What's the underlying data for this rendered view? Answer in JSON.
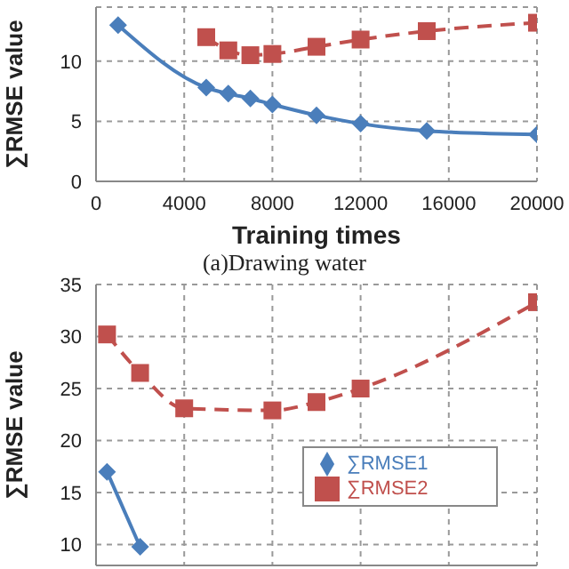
{
  "chart_data": [
    {
      "type": "line",
      "xlabel": "Training times",
      "ylabel": "∑RMSE value",
      "annotations": [
        "(a)Drawing water"
      ],
      "xlim": [
        0,
        20000
      ],
      "xticks": [
        0,
        4000,
        8000,
        12000,
        16000,
        20000
      ],
      "ylim": [
        0,
        14.5
      ],
      "yticks": [
        0,
        5,
        10
      ],
      "grid": true,
      "legend": false,
      "series": [
        {
          "color": "#4a7ebb",
          "marker": "diamond",
          "line_style": "solid",
          "x": [
            1000,
            5000,
            6000,
            7000,
            8000,
            10000,
            12000,
            15000,
            20000
          ],
          "values": [
            13,
            7.8,
            7.3,
            6.9,
            6.4,
            5.5,
            4.8,
            4.2,
            3.9
          ]
        },
        {
          "color": "#c0504d",
          "marker": "square",
          "line_style": "dashed",
          "x": [
            5000,
            6000,
            7000,
            8000,
            10000,
            12000,
            15000,
            20000
          ],
          "values": [
            12,
            10.9,
            10.5,
            10.6,
            11.2,
            11.8,
            12.5,
            13.2
          ]
        }
      ]
    },
    {
      "type": "line",
      "ylabel": "∑RMSE value",
      "xlim": [
        0,
        20000
      ],
      "xticks": [
        {
          "value": 0,
          "label": null
        },
        {
          "value": 4000,
          "label": null
        },
        {
          "value": 8000,
          "label": null
        },
        {
          "value": 12000,
          "label": null
        },
        {
          "value": 16000,
          "label": null
        },
        {
          "value": 20000,
          "label": null
        }
      ],
      "ylim": [
        8,
        35
      ],
      "yticks": [
        10,
        15,
        20,
        25,
        30,
        35
      ],
      "grid": true,
      "legend": "right",
      "tick_labels": "y",
      "series": [
        {
          "name": "∑RMSE1",
          "color": "#4a7ebb",
          "marker": "diamond",
          "line_style": "solid",
          "x": [
            500,
            2000
          ],
          "values": [
            17,
            9.8
          ]
        },
        {
          "name": "∑RMSE2",
          "color": "#c0504d",
          "marker": "square",
          "line_style": "dashed",
          "x": [
            500,
            2000,
            4000,
            8000,
            10000,
            12000,
            20000
          ],
          "values": [
            30.2,
            26.5,
            23.1,
            22.9,
            23.7,
            25,
            33.3
          ]
        }
      ]
    }
  ]
}
